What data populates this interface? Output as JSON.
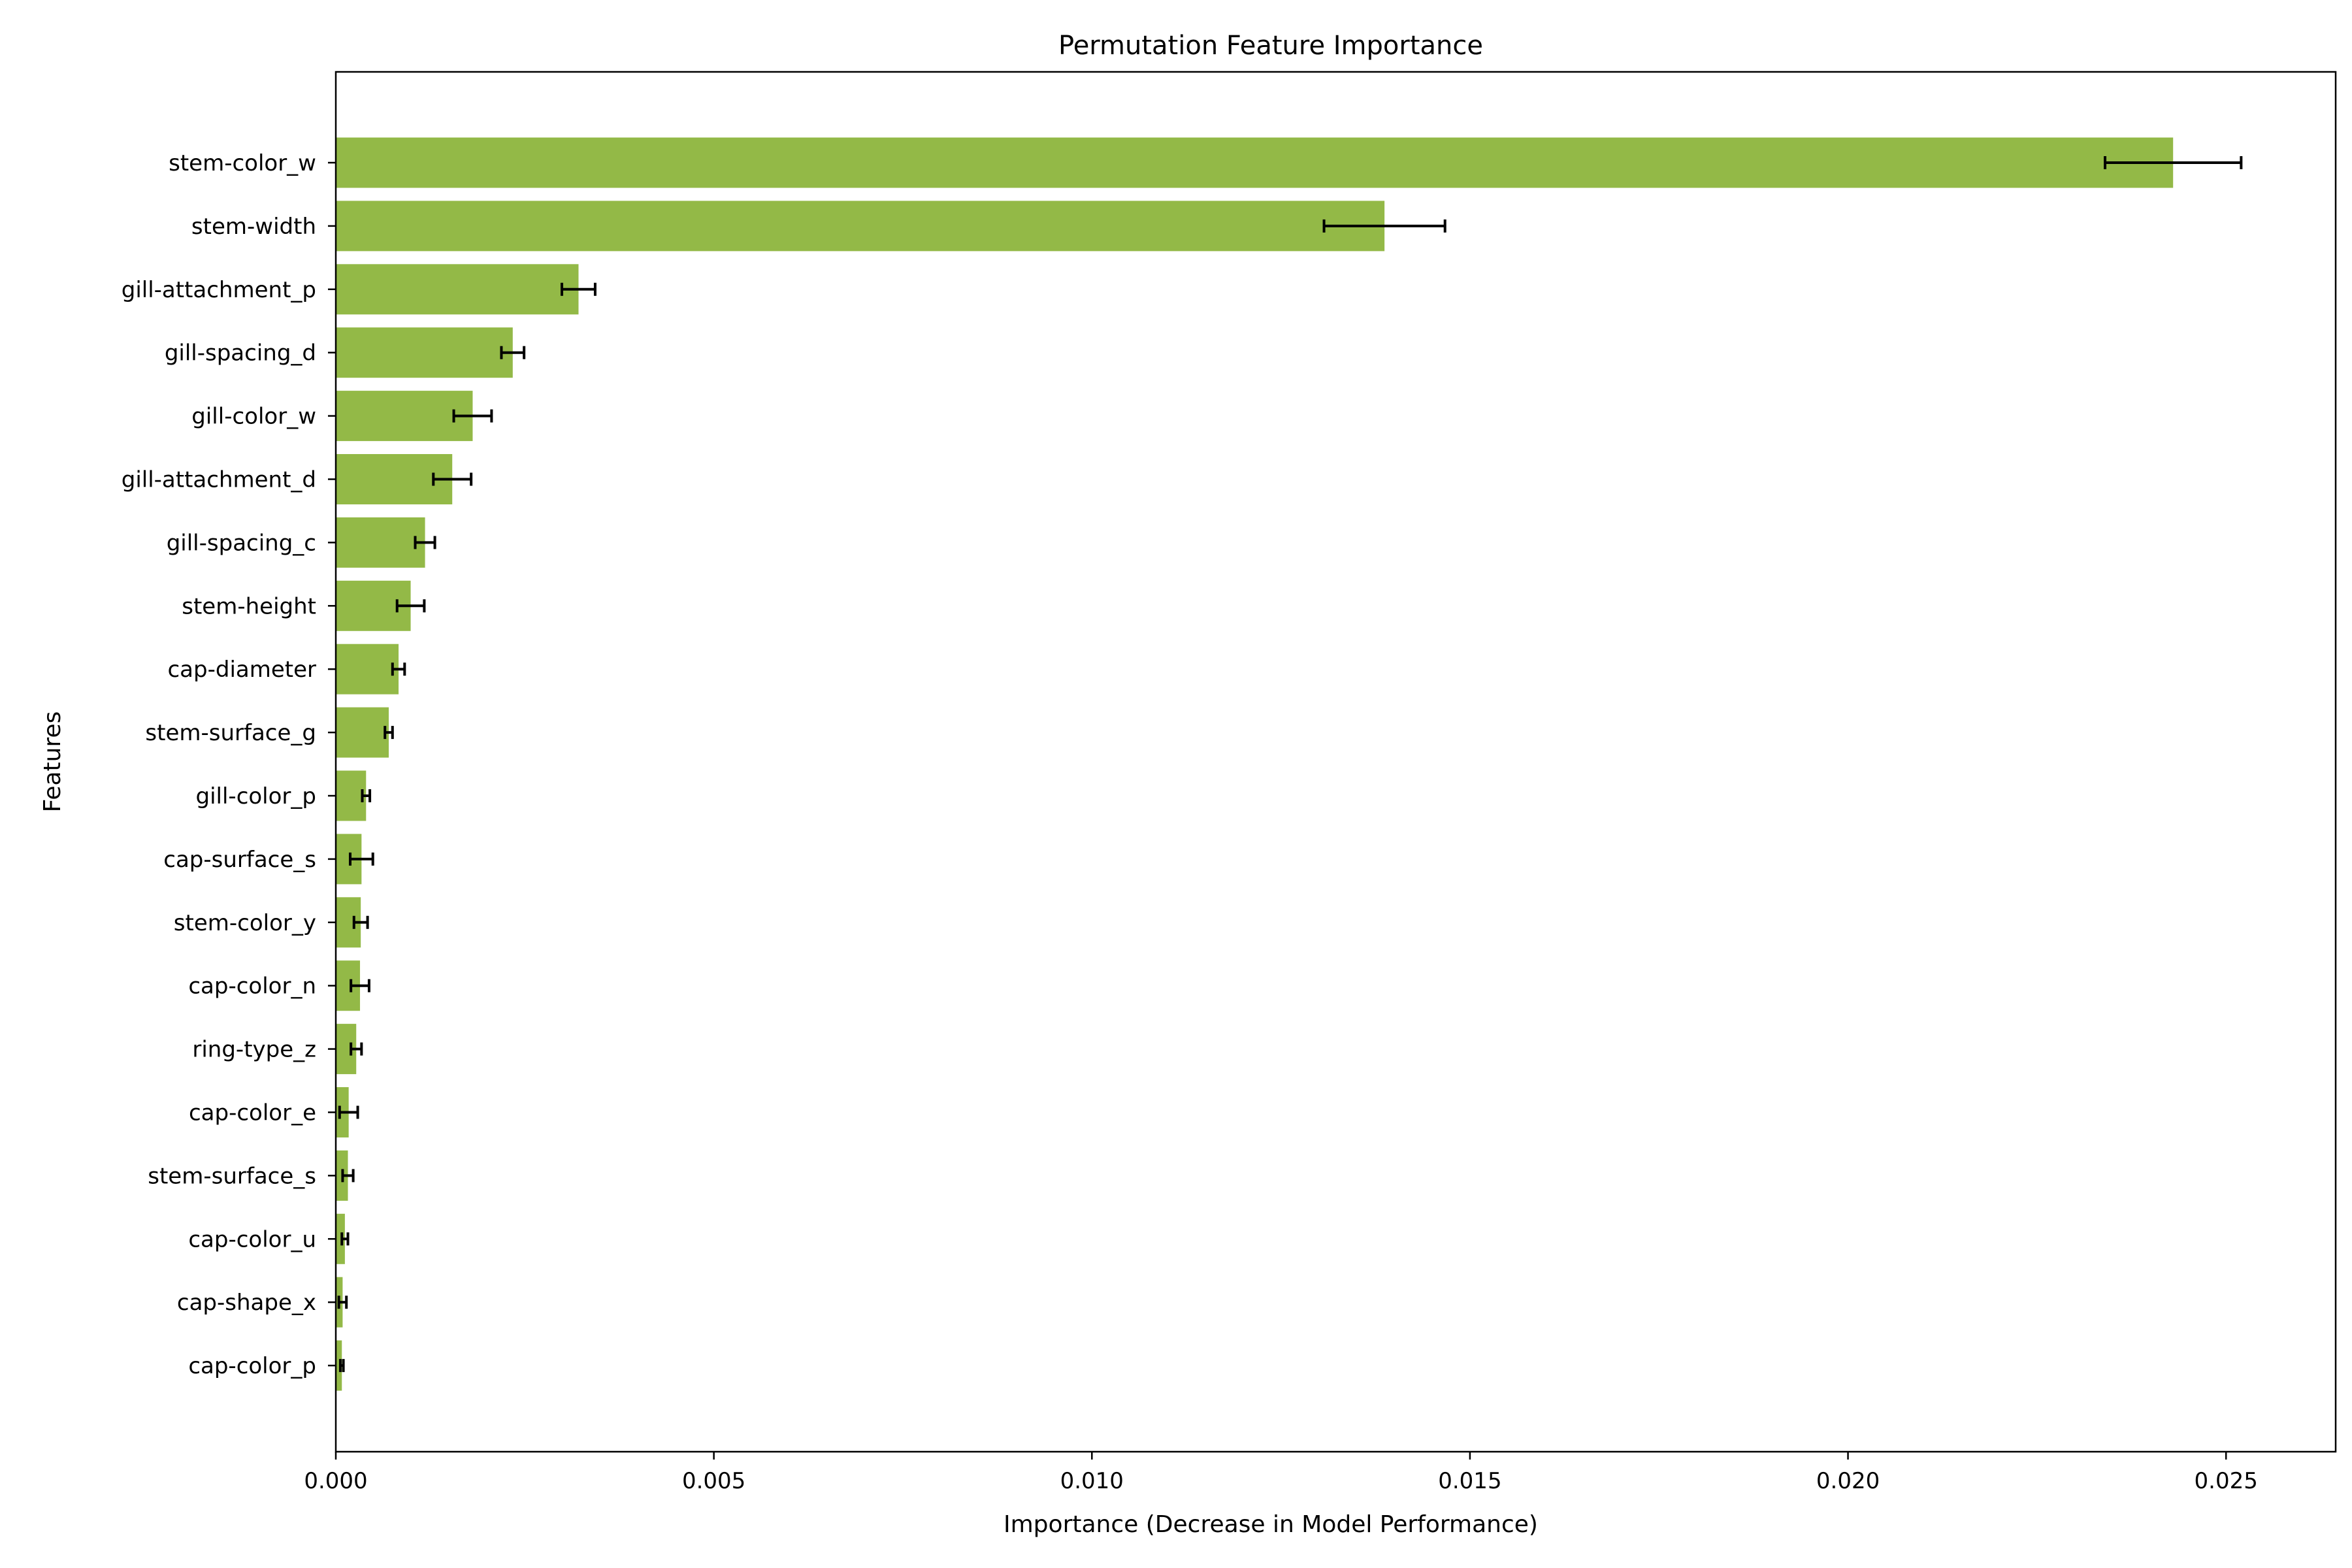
{
  "chart_data": {
    "type": "bar",
    "orientation": "horizontal",
    "title": "Permutation Feature Importance",
    "xlabel": "Importance (Decrease in Model Performance)",
    "ylabel": "Features",
    "xlim": [
      0,
      0.02645
    ],
    "xticks": [
      0.0,
      0.005,
      0.01,
      0.015,
      0.02,
      0.025
    ],
    "xtick_labels": [
      "0.000",
      "0.005",
      "0.010",
      "0.015",
      "0.020",
      "0.025"
    ],
    "grid": false,
    "bar_color": "#93b947",
    "errorbar_color": "#000000",
    "categories": [
      "stem-color_w",
      "stem-width",
      "gill-attachment_p",
      "gill-spacing_d",
      "gill-color_w",
      "gill-attachment_d",
      "gill-spacing_c",
      "stem-height",
      "cap-diameter",
      "stem-surface_g",
      "gill-color_p",
      "cap-surface_s",
      "stem-color_y",
      "cap-color_n",
      "ring-type_z",
      "cap-color_e",
      "stem-surface_s",
      "cap-color_u",
      "cap-shape_x",
      "cap-color_p"
    ],
    "values": [
      0.0243,
      0.01387,
      0.00321,
      0.00234,
      0.00181,
      0.00154,
      0.00118,
      0.00099,
      0.00083,
      0.0007,
      0.0004,
      0.00034,
      0.00033,
      0.00032,
      0.00027,
      0.00017,
      0.00016,
      0.00012,
      9e-05,
      8e-05
    ],
    "errors": [
      0.0009,
      0.0008,
      0.00022,
      0.00015,
      0.00025,
      0.00025,
      0.00013,
      0.00018,
      8e-05,
      5e-05,
      5e-05,
      0.00015,
      9e-05,
      0.00012,
      7e-05,
      0.00012,
      7e-05,
      4e-05,
      5e-05,
      2e-05
    ]
  }
}
